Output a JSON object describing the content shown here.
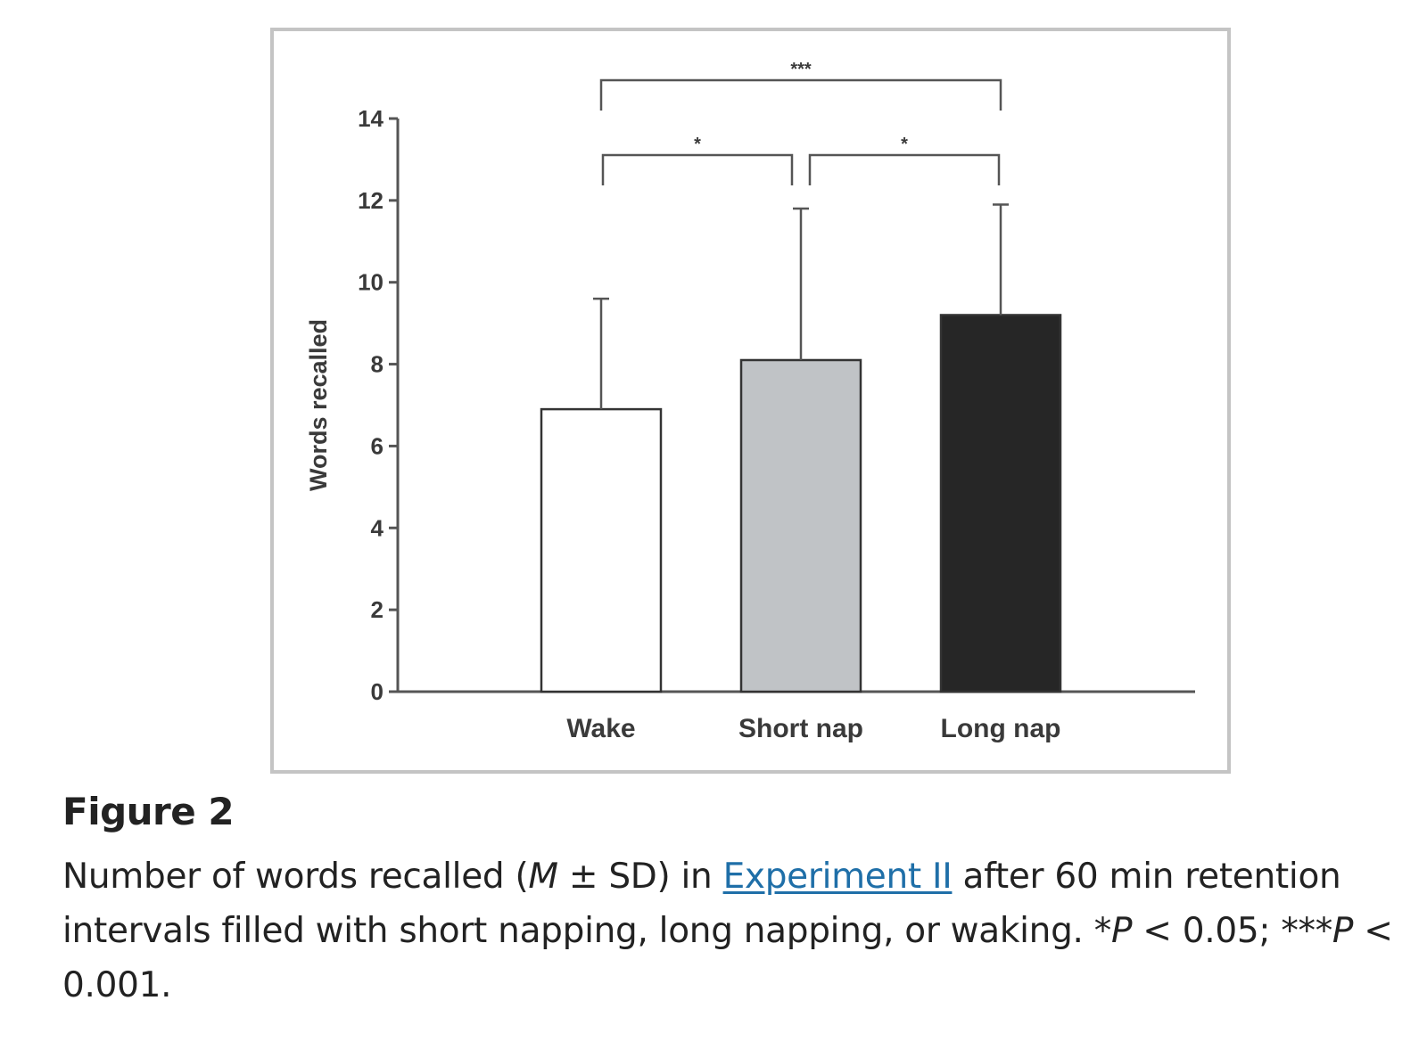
{
  "chart_data": {
    "type": "bar",
    "title": "",
    "ylabel": "Words recalled",
    "xlabel": "",
    "ylim": [
      0,
      14
    ],
    "yticks": [
      0,
      2,
      4,
      6,
      8,
      10,
      12,
      14
    ],
    "categories": [
      "Wake",
      "Short nap",
      "Long nap"
    ],
    "values": [
      6.9,
      8.1,
      9.2
    ],
    "errors": [
      2.7,
      3.7,
      2.7
    ],
    "bar_colors": [
      "#ffffff",
      "#c0c3c6",
      "#262626"
    ],
    "grid": false,
    "legend": "none",
    "significance": [
      {
        "from": "Wake",
        "to": "Short nap",
        "label": "*"
      },
      {
        "from": "Short nap",
        "to": "Long nap",
        "label": "*"
      },
      {
        "from": "Wake",
        "to": "Long nap",
        "label": "***"
      }
    ]
  },
  "caption": {
    "figure_label": "Figure 2",
    "text_before_italic": "Number of words recalled (",
    "italic_m": "M",
    "text_after_italic": " ± SD) in ",
    "link_text": "Experiment II",
    "text_after_link": " after 60 min retention intervals filled with short napping, long napping, or waking. *",
    "italic_p1": "P",
    "text_mid": " < 0.05; ***",
    "italic_p2": "P",
    "text_end": " < 0.001."
  }
}
